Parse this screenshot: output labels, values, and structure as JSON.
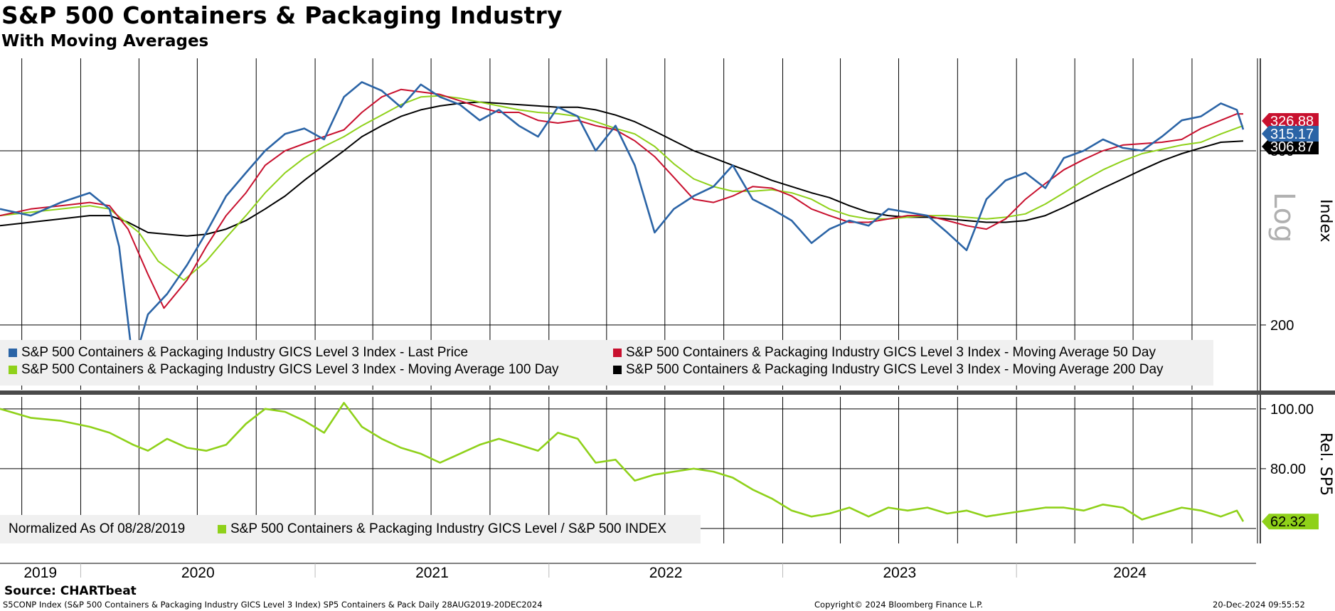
{
  "title": "S&P 500 Containers & Packaging Industry",
  "subtitle": "With Moving Averages",
  "source": "Source: CHARTbeat",
  "footer": {
    "left": "S5CONP Index (S&P 500 Containers & Packaging Industry GICS Level 3 Index) SP5 Containers & Pack  Daily 28AUG2019-20DEC2024",
    "center": "Copyright© 2024 Bloomberg Finance L.P.",
    "right": "20-Dec-2024 09:55:52"
  },
  "colors": {
    "price": "#2b64a6",
    "ma50": "#c8102e",
    "ma100": "#8fd11a",
    "ma200": "#000000",
    "relative": "#8fd11a"
  },
  "chart_data": [
    {
      "type": "line",
      "panel": "upper",
      "y_scale": "log",
      "ylabel": "Index",
      "scale_label": "Log",
      "ylim": [
        172,
        372
      ],
      "y_ticks": [
        200,
        300
      ],
      "x_labels": [
        "2019",
        "2020",
        "2021",
        "2022",
        "2023",
        "2024"
      ],
      "xlim": [
        "2019-08-28",
        "2024-12-20"
      ],
      "last_value_labels": [
        {
          "series": "ma50",
          "value": "326.88"
        },
        {
          "series": "price",
          "value": "315.17"
        },
        {
          "series": "ma200",
          "value": "306.87"
        }
      ],
      "legend": [
        {
          "key": "price",
          "label": "S&P 500 Containers & Packaging Industry GICS Level 3 Index - Last Price"
        },
        {
          "key": "ma50",
          "label": "S&P 500 Containers & Packaging Industry GICS Level 3 Index - Moving Average 50 Day"
        },
        {
          "key": "ma100",
          "label": "S&P 500 Containers & Packaging Industry GICS Level 3 Index - Moving Average 100 Day"
        },
        {
          "key": "ma200",
          "label": "S&P 500 Containers & Packaging Industry GICS Level 3 Index - Moving Average 200 Day"
        }
      ],
      "series": [
        {
          "key": "price",
          "x": [
            "2019-08-28",
            "2019-10-15",
            "2019-12-01",
            "2020-01-15",
            "2020-02-15",
            "2020-03-01",
            "2020-03-23",
            "2020-04-15",
            "2020-05-15",
            "2020-06-15",
            "2020-07-15",
            "2020-08-15",
            "2020-09-15",
            "2020-10-15",
            "2020-11-15",
            "2020-12-15",
            "2021-01-15",
            "2021-02-15",
            "2021-03-15",
            "2021-04-15",
            "2021-05-15",
            "2021-06-15",
            "2021-07-15",
            "2021-08-15",
            "2021-09-15",
            "2021-10-15",
            "2021-11-15",
            "2021-12-15",
            "2022-01-15",
            "2022-02-15",
            "2022-03-15",
            "2022-04-15",
            "2022-05-15",
            "2022-06-15",
            "2022-07-15",
            "2022-08-15",
            "2022-09-15",
            "2022-10-15",
            "2022-11-15",
            "2022-12-15",
            "2023-01-15",
            "2023-02-15",
            "2023-03-15",
            "2023-04-15",
            "2023-05-15",
            "2023-06-15",
            "2023-07-15",
            "2023-08-15",
            "2023-09-15",
            "2023-10-15",
            "2023-11-15",
            "2023-12-15",
            "2024-01-15",
            "2024-02-15",
            "2024-03-15",
            "2024-04-15",
            "2024-05-15",
            "2024-06-15",
            "2024-07-15",
            "2024-08-15",
            "2024-09-15",
            "2024-10-15",
            "2024-11-15",
            "2024-12-10",
            "2024-12-20"
          ],
          "values": [
            262,
            258,
            266,
            272,
            262,
            240,
            182,
            205,
            215,
            230,
            248,
            270,
            285,
            300,
            312,
            316,
            308,
            340,
            352,
            345,
            332,
            350,
            340,
            334,
            322,
            330,
            318,
            310,
            332,
            325,
            300,
            318,
            290,
            248,
            262,
            270,
            276,
            290,
            268,
            262,
            255,
            242,
            250,
            255,
            252,
            262,
            260,
            258,
            248,
            238,
            268,
            280,
            285,
            275,
            295,
            300,
            308,
            302,
            300,
            310,
            322,
            325,
            335,
            330,
            315.17
          ]
        },
        {
          "key": "ma50",
          "x": [
            "2019-08-28",
            "2019-10-15",
            "2019-12-01",
            "2020-01-15",
            "2020-02-15",
            "2020-03-15",
            "2020-04-15",
            "2020-05-10",
            "2020-06-15",
            "2020-07-15",
            "2020-08-15",
            "2020-09-15",
            "2020-10-15",
            "2020-11-15",
            "2020-12-15",
            "2021-01-15",
            "2021-02-15",
            "2021-03-15",
            "2021-04-15",
            "2021-05-15",
            "2021-06-15",
            "2021-07-15",
            "2021-08-15",
            "2021-09-15",
            "2021-10-15",
            "2021-11-15",
            "2021-12-15",
            "2022-01-15",
            "2022-02-15",
            "2022-03-15",
            "2022-04-15",
            "2022-05-15",
            "2022-06-15",
            "2022-07-15",
            "2022-08-15",
            "2022-09-15",
            "2022-10-15",
            "2022-11-15",
            "2022-12-15",
            "2023-01-15",
            "2023-02-15",
            "2023-03-15",
            "2023-04-15",
            "2023-05-15",
            "2023-06-15",
            "2023-07-15",
            "2023-08-15",
            "2023-09-15",
            "2023-10-15",
            "2023-11-15",
            "2023-12-15",
            "2024-01-15",
            "2024-02-15",
            "2024-03-15",
            "2024-04-15",
            "2024-05-15",
            "2024-06-15",
            "2024-07-15",
            "2024-08-15",
            "2024-09-15",
            "2024-10-15",
            "2024-11-15",
            "2024-12-10",
            "2024-12-20"
          ],
          "values": [
            258,
            262,
            264,
            266,
            264,
            250,
            225,
            208,
            222,
            240,
            258,
            272,
            290,
            300,
            305,
            310,
            315,
            328,
            340,
            346,
            344,
            342,
            337,
            332,
            328,
            328,
            322,
            320,
            322,
            318,
            315,
            307,
            296,
            282,
            268,
            266,
            270,
            276,
            275,
            270,
            262,
            258,
            254,
            254,
            256,
            258,
            258,
            255,
            252,
            250,
            256,
            268,
            278,
            287,
            294,
            300,
            304,
            305,
            306,
            308,
            316,
            322,
            326.88,
            326.88
          ]
        },
        {
          "key": "ma100",
          "x": [
            "2019-08-28",
            "2019-12-01",
            "2020-01-15",
            "2020-02-15",
            "2020-04-01",
            "2020-05-01",
            "2020-06-10",
            "2020-07-15",
            "2020-08-15",
            "2020-09-15",
            "2020-10-15",
            "2020-11-15",
            "2020-12-15",
            "2021-01-15",
            "2021-02-15",
            "2021-03-15",
            "2021-04-15",
            "2021-05-15",
            "2021-06-15",
            "2021-07-15",
            "2021-08-15",
            "2021-09-15",
            "2021-10-15",
            "2021-11-15",
            "2021-12-15",
            "2022-01-15",
            "2022-02-15",
            "2022-03-15",
            "2022-04-15",
            "2022-05-15",
            "2022-06-15",
            "2022-07-15",
            "2022-08-15",
            "2022-09-15",
            "2022-10-15",
            "2022-11-15",
            "2022-12-15",
            "2023-01-15",
            "2023-02-15",
            "2023-03-15",
            "2023-04-15",
            "2023-05-15",
            "2023-06-15",
            "2023-07-15",
            "2023-08-15",
            "2023-09-15",
            "2023-10-15",
            "2023-11-15",
            "2023-12-15",
            "2024-01-15",
            "2024-02-15",
            "2024-03-15",
            "2024-04-15",
            "2024-05-15",
            "2024-06-15",
            "2024-07-15",
            "2024-08-15",
            "2024-09-15",
            "2024-10-15",
            "2024-11-15",
            "2024-12-20"
          ],
          "values": [
            258,
            262,
            264,
            262,
            248,
            232,
            222,
            232,
            245,
            258,
            272,
            285,
            295,
            303,
            310,
            318,
            326,
            334,
            340,
            341,
            339,
            336,
            333,
            330,
            328,
            327,
            325,
            321,
            316,
            312,
            303,
            291,
            281,
            276,
            273,
            273,
            274,
            272,
            268,
            262,
            258,
            256,
            256,
            257,
            258,
            258,
            257,
            256,
            257,
            259,
            265,
            272,
            280,
            287,
            293,
            298,
            301,
            304,
            306,
            312,
            318
          ]
        },
        {
          "key": "ma200",
          "x": [
            "2019-08-28",
            "2019-12-01",
            "2020-01-15",
            "2020-02-15",
            "2020-03-15",
            "2020-04-15",
            "2020-06-15",
            "2020-07-15",
            "2020-08-15",
            "2020-09-15",
            "2020-10-15",
            "2020-11-15",
            "2020-12-15",
            "2021-01-15",
            "2021-02-15",
            "2021-03-15",
            "2021-04-15",
            "2021-05-15",
            "2021-06-15",
            "2021-07-15",
            "2021-08-15",
            "2021-09-15",
            "2021-10-15",
            "2021-11-15",
            "2021-12-15",
            "2022-01-15",
            "2022-02-15",
            "2022-03-15",
            "2022-04-15",
            "2022-05-15",
            "2022-06-15",
            "2022-07-15",
            "2022-08-15",
            "2022-09-15",
            "2022-10-15",
            "2022-11-15",
            "2022-12-15",
            "2023-01-15",
            "2023-02-15",
            "2023-03-15",
            "2023-04-15",
            "2023-05-15",
            "2023-06-15",
            "2023-07-15",
            "2023-08-15",
            "2023-09-15",
            "2023-10-15",
            "2023-11-15",
            "2023-12-15",
            "2024-01-15",
            "2024-02-15",
            "2024-03-15",
            "2024-04-15",
            "2024-05-15",
            "2024-06-15",
            "2024-07-15",
            "2024-08-15",
            "2024-09-15",
            "2024-10-15",
            "2024-11-15",
            "2024-12-20"
          ],
          "values": [
            252,
            256,
            258,
            258,
            254,
            248,
            246,
            247,
            250,
            255,
            262,
            270,
            280,
            290,
            300,
            310,
            318,
            325,
            330,
            333,
            335,
            336,
            335,
            334,
            333,
            332,
            332,
            330,
            326,
            321,
            314,
            307,
            300,
            295,
            290,
            285,
            280,
            276,
            272,
            269,
            264,
            260,
            258,
            257,
            257,
            256,
            255,
            254,
            254,
            255,
            258,
            263,
            269,
            275,
            281,
            287,
            293,
            298,
            302,
            306,
            306.87
          ]
        }
      ]
    },
    {
      "type": "line",
      "panel": "lower",
      "ylabel": "Rel. SP5",
      "ylim": [
        55,
        104
      ],
      "y_ticks": [
        80,
        100
      ],
      "tick_labels": [
        "80.00",
        "100.00"
      ],
      "last_value_label": "62.32",
      "legend": [
        {
          "key": "normalized",
          "label": "Normalized As Of 08/28/2019"
        },
        {
          "key": "relative",
          "label": "S&P 500 Containers & Packaging Industry GICS Level / S&P 500 INDEX"
        }
      ],
      "series": [
        {
          "key": "relative",
          "x": [
            "2019-08-28",
            "2019-10-15",
            "2019-12-01",
            "2020-01-15",
            "2020-02-15",
            "2020-03-23",
            "2020-04-15",
            "2020-05-15",
            "2020-06-15",
            "2020-07-15",
            "2020-08-15",
            "2020-09-15",
            "2020-10-15",
            "2020-11-15",
            "2020-12-15",
            "2021-01-15",
            "2021-02-15",
            "2021-03-15",
            "2021-04-15",
            "2021-05-15",
            "2021-06-15",
            "2021-07-15",
            "2021-08-15",
            "2021-09-15",
            "2021-10-15",
            "2021-11-15",
            "2021-12-15",
            "2022-01-15",
            "2022-02-15",
            "2022-03-15",
            "2022-04-15",
            "2022-05-15",
            "2022-06-15",
            "2022-07-15",
            "2022-08-15",
            "2022-09-15",
            "2022-10-15",
            "2022-11-15",
            "2022-12-15",
            "2023-01-15",
            "2023-02-15",
            "2023-03-15",
            "2023-04-15",
            "2023-05-15",
            "2023-06-15",
            "2023-07-15",
            "2023-08-15",
            "2023-09-15",
            "2023-10-15",
            "2023-11-15",
            "2023-12-15",
            "2024-01-15",
            "2024-02-15",
            "2024-03-15",
            "2024-04-15",
            "2024-05-15",
            "2024-06-15",
            "2024-07-15",
            "2024-08-15",
            "2024-09-15",
            "2024-10-15",
            "2024-11-15",
            "2024-12-10",
            "2024-12-20"
          ],
          "values": [
            100,
            97,
            96,
            94,
            92,
            88,
            86,
            90,
            87,
            86,
            88,
            95,
            100,
            99,
            96,
            92,
            102,
            94,
            90,
            87,
            85,
            82,
            85,
            88,
            90,
            88,
            86,
            92,
            90,
            82,
            83,
            76,
            78,
            79,
            80,
            79,
            77,
            73,
            70,
            66,
            64,
            65,
            67,
            64,
            67,
            66,
            67,
            65,
            66,
            64,
            65,
            66,
            67,
            67,
            66,
            68,
            67,
            63,
            65,
            67,
            66,
            64,
            66,
            62.32
          ]
        }
      ]
    }
  ]
}
